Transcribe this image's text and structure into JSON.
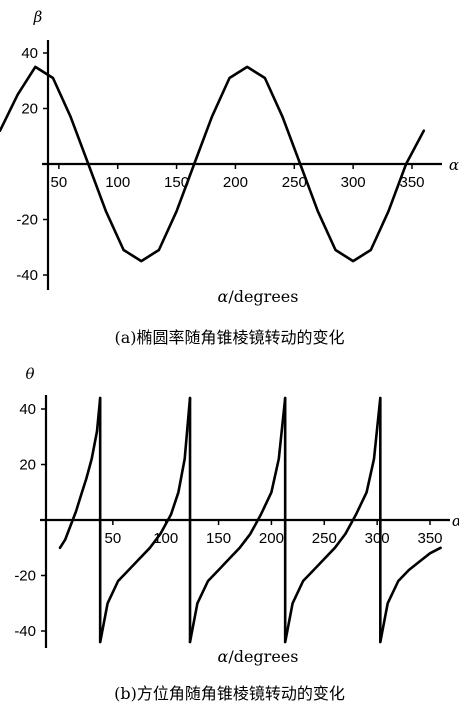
{
  "chart_data": [
    {
      "type": "line",
      "caption": "(a)椭圆率随角锥棱镜转动的变化",
      "xlabel_var": "α",
      "xlabel_unit": "/degrees",
      "ylabel": "β",
      "xaxis_end_label": "α",
      "xlim": [
        0,
        365
      ],
      "ylim": [
        -45,
        45
      ],
      "xticks": [
        50,
        100,
        150,
        200,
        250,
        300,
        350
      ],
      "yticks": [
        40,
        20,
        -20,
        -40
      ],
      "series": [
        {
          "x": [
            0,
            15,
            30,
            45,
            60,
            75,
            90,
            105,
            120,
            135,
            150,
            165,
            180,
            195,
            210,
            225,
            240,
            255,
            270,
            285,
            300,
            315,
            330,
            345,
            360
          ],
          "y": [
            12,
            25,
            35,
            31,
            17,
            0,
            -17,
            -31,
            -35,
            -31,
            -17,
            0,
            17,
            31,
            35,
            31,
            17,
            0,
            -17,
            -31,
            -35,
            -31,
            -17,
            0,
            12
          ]
        }
      ]
    },
    {
      "type": "line",
      "caption": "(b)方位角随角锥棱镜转动的变化",
      "xlabel_var": "α",
      "xlabel_unit": "/degrees",
      "ylabel": "θ",
      "xaxis_end_label": "α",
      "xlim": [
        -5,
        365
      ],
      "ylim": [
        -47,
        47
      ],
      "xticks": [
        50,
        100,
        150,
        200,
        250,
        300,
        350
      ],
      "yticks": [
        40,
        20,
        -20,
        -40
      ],
      "series": [
        {
          "segments": [
            {
              "x": [
                0,
                5,
                10,
                15,
                20,
                25,
                30,
                35,
                38
              ],
              "y": [
                -10,
                -7,
                -2,
                3,
                9,
                15,
                22,
                32,
                44
              ]
            },
            {
              "x": [
                38,
                45,
                55,
                65,
                75,
                85,
                95,
                105,
                112,
                118,
                123
              ],
              "y": [
                -44,
                -30,
                -22,
                -18,
                -14,
                -10,
                -5,
                2,
                10,
                22,
                44
              ]
            },
            {
              "x": [
                123,
                130,
                140,
                150,
                160,
                170,
                180,
                190,
                200,
                207,
                213
              ],
              "y": [
                -44,
                -30,
                -22,
                -18,
                -14,
                -10,
                -5,
                2,
                10,
                22,
                44
              ]
            },
            {
              "x": [
                213,
                220,
                230,
                240,
                250,
                260,
                270,
                280,
                290,
                297,
                303
              ],
              "y": [
                -44,
                -30,
                -22,
                -18,
                -14,
                -10,
                -5,
                2,
                10,
                22,
                44
              ]
            },
            {
              "x": [
                303,
                310,
                320,
                330,
                340,
                350,
                360
              ],
              "y": [
                -44,
                -30,
                -22,
                -18,
                -15,
                -12,
                -10
              ]
            }
          ]
        }
      ]
    }
  ]
}
